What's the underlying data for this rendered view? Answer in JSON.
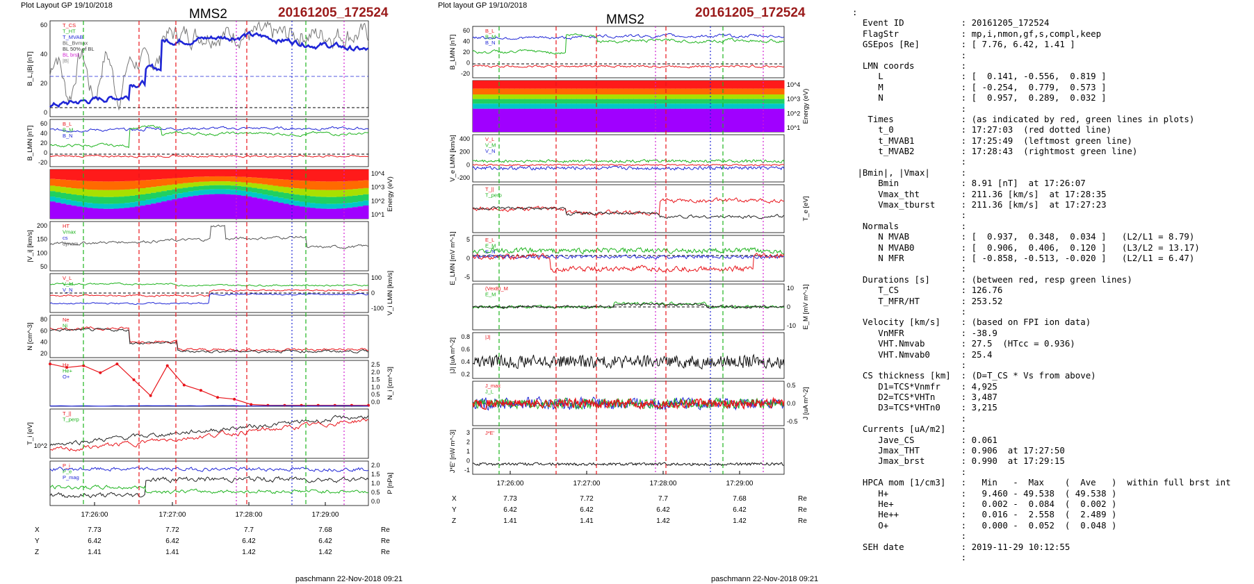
{
  "left": {
    "layout": "Plot Layout GP 19/10/2018",
    "spacecraft": "MMS2",
    "event": "20161205_172524",
    "footer": "paschmann 22-Nov-2018 09:21",
    "time_ticks": [
      "17:26:00",
      "17:27:00",
      "17:28:00",
      "17:29:00"
    ],
    "pos_rows": [
      {
        "label": "X",
        "values": [
          "7.73",
          "7.72",
          "7.7",
          "7.68"
        ],
        "unit": "Re"
      },
      {
        "label": "Y",
        "values": [
          "6.42",
          "6.42",
          "6.42",
          "6.42"
        ],
        "unit": "Re"
      },
      {
        "label": "Z",
        "values": [
          "1.41",
          "1.41",
          "1.42",
          "1.42"
        ],
        "unit": "Re"
      }
    ],
    "panels": [
      {
        "ylabel": "B_L,|B| [nT]",
        "ticks": [
          "60",
          "40",
          "20",
          "0"
        ],
        "legend": [
          "T_CS",
          "T_HT",
          "T_MVAB",
          "BL_Bvmax",
          "BL 50% of BL",
          "BL brst",
          "|B|"
        ]
      },
      {
        "ylabel": "B_LMN [nT]",
        "ticks": [
          "60",
          "40",
          "20",
          "0",
          "-20"
        ],
        "legend": [
          "B_L",
          "B_M",
          "B_N"
        ]
      },
      {
        "ylabel": "Energy (eV)",
        "ticks": [
          "10^4",
          "10^3",
          "10^2",
          "10^1"
        ],
        "legend": []
      },
      {
        "ylabel": "|V_i| [km/s]",
        "ticks": [
          "200",
          "150",
          "100",
          "50"
        ],
        "legend": [
          "HT",
          "Vmax",
          "cs",
          "dynam"
        ]
      },
      {
        "ylabel": "V_i LMN [km/s]",
        "ticks": [
          "100",
          "0",
          "-100"
        ],
        "legend": [
          "V_L",
          "V_M",
          "V_N"
        ]
      },
      {
        "ylabel": "N [cm^-3]",
        "ticks": [
          "80",
          "60",
          "40",
          "20"
        ],
        "legend": [
          "Ne",
          "Ni"
        ]
      },
      {
        "ylabel": "N_i [cm^-3]",
        "ticks": [
          "2.5",
          "2.0",
          "1.5",
          "1.0",
          "0.5",
          "0.0"
        ],
        "legend": [
          "H+",
          "He+",
          "O+"
        ]
      },
      {
        "ylabel": "T_i [eV]",
        "ticks": [
          "10^2"
        ],
        "legend": [
          "T_||",
          "T_perp"
        ]
      },
      {
        "ylabel": "P [nPa]",
        "ticks": [
          "2.0",
          "1.5",
          "1.0",
          "0.5",
          "0.0"
        ],
        "legend": [
          "P_i",
          "P_e",
          "P_mag"
        ]
      }
    ]
  },
  "mid": {
    "layout": "Plot layout GP 19/10/2018",
    "spacecraft": "MMS2",
    "event": "20161205_172524",
    "footer": "paschmann 22-Nov-2018 09:21",
    "time_ticks": [
      "17:26:00",
      "17:27:00",
      "17:28:00",
      "17:29:00"
    ],
    "pos_rows": [
      {
        "label": "X",
        "values": [
          "7.73",
          "7.72",
          "7.7",
          "7.68"
        ],
        "unit": "Re"
      },
      {
        "label": "Y",
        "values": [
          "6.42",
          "6.42",
          "6.42",
          "6.42"
        ],
        "unit": "Re"
      },
      {
        "label": "Z",
        "values": [
          "1.41",
          "1.41",
          "1.42",
          "1.42"
        ],
        "unit": "Re"
      }
    ],
    "panels": [
      {
        "ylabel": "B_LMN [nT]",
        "ticks": [
          "60",
          "40",
          "20",
          "0",
          "-20"
        ],
        "legend": [
          "B_L",
          "B_M",
          "B_N"
        ]
      },
      {
        "ylabel": "Energy (eV)",
        "ticks": [
          "10^4",
          "10^3",
          "10^2",
          "10^1"
        ],
        "legend": []
      },
      {
        "ylabel": "V_e LMN [km/s]",
        "ticks": [
          "400",
          "200",
          "0",
          "-200"
        ],
        "legend": [
          "V_L",
          "V_M",
          "V_N"
        ]
      },
      {
        "ylabel": "T_e [eV]",
        "ticks": [],
        "legend": [
          "T_||",
          "T_perp"
        ]
      },
      {
        "ylabel": "E_LMN [mV m^-1]",
        "ticks": [
          "5",
          "0",
          "-5"
        ],
        "legend": [
          "E_L",
          "E_M",
          "E_N"
        ]
      },
      {
        "ylabel": "E_M [mV m^-1]",
        "ticks": [
          "10",
          "0",
          "-10"
        ],
        "legend": [
          "(VexB)_M",
          "E_M"
        ]
      },
      {
        "ylabel": "|J| [uA m^-2]",
        "ticks": [
          "0.8",
          "0.6",
          "0.4",
          "0.2"
        ],
        "legend": [
          "|J|"
        ]
      },
      {
        "ylabel": "J [uA m^-2]",
        "ticks": [
          "0.5",
          "0.0",
          "-0.5"
        ],
        "legend": [
          "J_max",
          "J_L"
        ]
      },
      {
        "ylabel": "J*E' [nW m^-3]",
        "ticks": [
          "3",
          "2",
          "1",
          "0",
          "-1"
        ],
        "legend": [
          "J*E'"
        ]
      }
    ]
  },
  "summary_lines": [
    ":",
    "  Event ID           : 20161205_172524",
    "  FlagStr            : mp,i,nmon,gf,s,compl,keep",
    "  GSEpos [Re]        : [ 7.76, 6.42, 1.41 ]",
    "                     :",
    "  LMN coords         :",
    "     L               : [  0.141, -0.556,  0.819 ]",
    "     M               : [ -0.254,  0.779,  0.573 ]",
    "     N               : [  0.957,  0.289,  0.032 ]",
    "                     :",
    "   Times             : (as indicated by red, green lines in plots)",
    "     t_0             : 17:27:03  (red dotted line)",
    "     t_MVAB1         : 17:25:49  (leftmost green line)",
    "     t_MVAB2         : 17:28:43  (rightmost green line)",
    "                     :",
    " |Bmin|, |Vmax|      :",
    "     Bmin            : 8.91 [nT]  at 17:26:07",
    "     Vmax_tht        : 211.36 [km/s]  at 17:28:35",
    "     Vmax_tburst     : 211.36 [km/s]  at 17:27:23",
    "                     :",
    "  Normals            :",
    "     N MVAB          : [  0.937,  0.348,  0.034 ]   (L2/L1 = 8.79)",
    "     N MVAB0         : [  0.906,  0.406,  0.120 ]   (L3/L2 = 13.17)",
    "     N MFR           : [ -0.858, -0.513, -0.020 ]   (L2/L1 = 6.47)",
    "                     :",
    "  Durations [s]      : (between red, resp green lines)",
    "     T_CS            : 126.76",
    "     T_MFR/HT        : 253.52",
    "                     :",
    "  Velocity [km/s]    : (based on FPI ion data)",
    "     VnMFR           : -38.9",
    "     VHT.Nmvab       : 27.5  (HTcc = 0.936)",
    "     VHT.Nmvab0      : 25.4",
    "                     :",
    "  CS thickness [km]  : (D=T_CS * Vs from above)",
    "     D1=TCS*Vnmfr    : 4,925",
    "     D2=TCS*VHTn     : 3,487",
    "     D3=TCS*VHTn0    : 3,215",
    "                     :",
    "  Currents [uA/m2]   :",
    "     Jave_CS         : 0.061",
    "     Jmax_THT        : 0.906  at 17:27:50",
    "     Jmax_brst       : 0.990  at 17:29:15",
    "                     :",
    "  HPCA mom [1/cm3]   :   Min   -  Max    (  Ave   )  within full brst int",
    "     H+              :   9.460 - 49.538  ( 49.538 )",
    "     He+             :   0.002 -  0.084  (  0.002 )",
    "     He++            :   0.016 -  2.558  (  2.489 )",
    "     O+              :   0.000 -  0.052  (  0.048 )",
    "                     :",
    "  SEH date           : 2019-11-29 10:12:55",
    "                     :"
  ],
  "chart_data": [
    {
      "type": "line",
      "title": "MMS2",
      "subtitle": "20161205_172524",
      "x_ticks": [
        "17:26:00",
        "17:27:00",
        "17:28:00",
        "17:29:00"
      ],
      "panels": 9,
      "series": [
        {
          "name": "|B|",
          "approx_values_nT": [
            5,
            8,
            10,
            35,
            45,
            55,
            55,
            55,
            53,
            52
          ]
        },
        {
          "name": "B_L",
          "approx_values_nT": [
            0,
            5,
            8,
            25,
            30,
            45,
            52,
            55,
            48,
            40
          ]
        }
      ]
    },
    {
      "type": "line",
      "title": "MMS2",
      "subtitle": "20161205_172524",
      "x_ticks": [
        "17:26:00",
        "17:27:00",
        "17:28:00",
        "17:29:00"
      ],
      "panels": 9,
      "series": [
        {
          "name": "B_L",
          "approx_values_nT": [
            45,
            45,
            45,
            40,
            45,
            48,
            48,
            50,
            48,
            40
          ]
        },
        {
          "name": "B_M",
          "approx_values_nT": [
            15,
            18,
            15,
            50,
            45,
            40,
            25,
            20,
            22,
            18
          ]
        }
      ]
    }
  ],
  "colors": {
    "red": "#e8141a",
    "green": "#1db31d",
    "blue": "#1f26d6",
    "magenta": "#d21fd2",
    "title_red": "#9a1a1a"
  }
}
